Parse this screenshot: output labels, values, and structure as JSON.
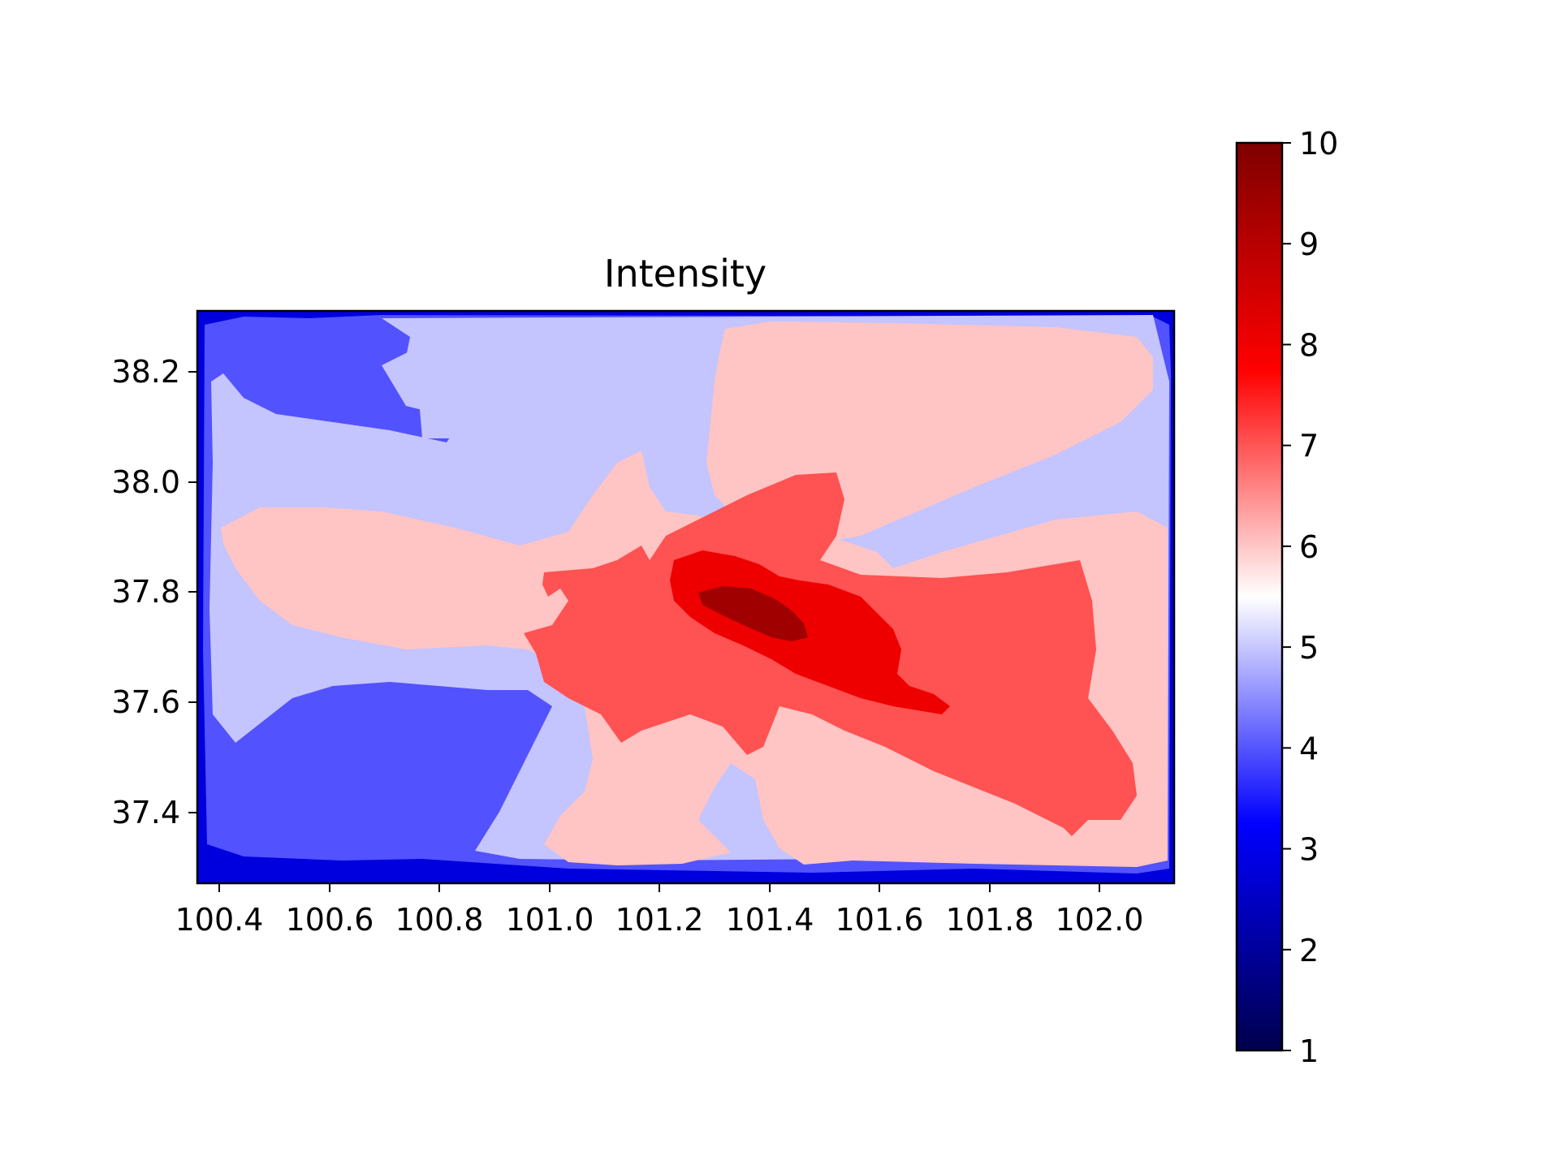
{
  "chart_data": {
    "type": "heatmap",
    "subtype": "filled-contour",
    "title": "Intensity",
    "xlabel": "",
    "ylabel": "",
    "xlim": [
      100.36,
      102.14
    ],
    "ylim": [
      37.27,
      38.31
    ],
    "x_ticks": [
      "100.4",
      "100.6",
      "100.8",
      "101.0",
      "101.2",
      "101.4",
      "101.6",
      "101.8",
      "102.0"
    ],
    "y_ticks": [
      "37.4",
      "37.6",
      "37.8",
      "38.0",
      "38.2"
    ],
    "colormap": "seismic",
    "colorbar": {
      "range": [
        1,
        10
      ],
      "ticks": [
        "1",
        "2",
        "3",
        "4",
        "5",
        "6",
        "7",
        "8",
        "9",
        "10"
      ],
      "stops": [
        {
          "value": 1,
          "color": "#00004c"
        },
        {
          "value": 3.25,
          "color": "#0000ff"
        },
        {
          "value": 5.5,
          "color": "#ffffff"
        },
        {
          "value": 7.75,
          "color": "#ff0000"
        },
        {
          "value": 10,
          "color": "#7f0000"
        }
      ]
    },
    "grid": false,
    "levels": [
      {
        "range": [
          3,
          3.5
        ],
        "color": "#0000df",
        "where": "outer border frame"
      },
      {
        "range": [
          3.5,
          4.5
        ],
        "color": "#5252ff",
        "where": "west and south-west, north-west lobes"
      },
      {
        "range": [
          4.5,
          5.5
        ],
        "color": "#c4c4ff",
        "where": "background of most of the map"
      },
      {
        "range": [
          5.5,
          6.5
        ],
        "color": "#ffc4c4",
        "where": "broad band through centre, north-east and south"
      },
      {
        "range": [
          6.5,
          7.5
        ],
        "color": "#ff5252",
        "where": "central and eastern core"
      },
      {
        "range": [
          7.5,
          8.5
        ],
        "color": "#ee0000",
        "where": "elongated core near 101.4, 37.75"
      },
      {
        "range": [
          8.5,
          9.5
        ],
        "color": "#a00000",
        "where": "epicentre near 101.35, 37.77"
      }
    ]
  }
}
